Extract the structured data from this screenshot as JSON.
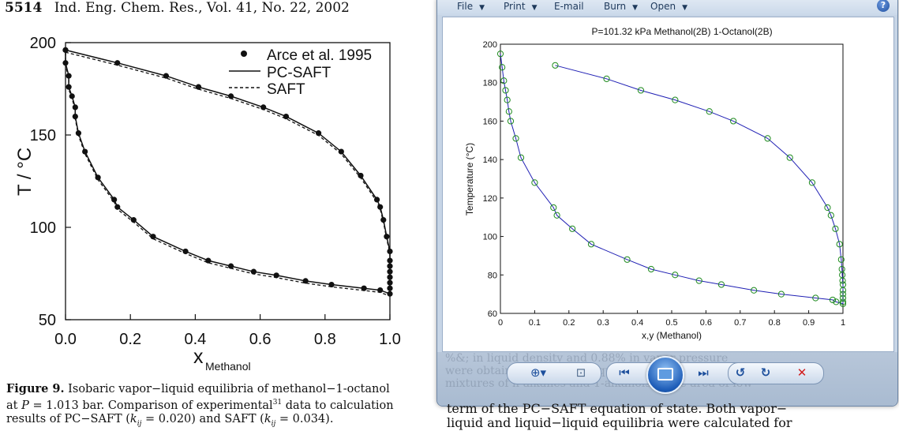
{
  "paper": {
    "page_number": "5514",
    "journal_line": "Ind. Eng. Chem. Res., Vol. 41, No. 22, 2002",
    "figure": {
      "y_axis_label": "T / °C",
      "x_axis_label_main": "x",
      "x_axis_label_sub": "Methanol",
      "legend": [
        "Arce et al. 1995",
        "PC-SAFT",
        "SAFT"
      ],
      "x_ticks": [
        "0.0",
        "0.2",
        "0.4",
        "0.6",
        "0.8",
        "1.0"
      ],
      "y_ticks": [
        "50",
        "100",
        "150",
        "200"
      ]
    },
    "caption": {
      "label": "Figure 9.",
      "line1": "Isobaric vapor−liquid equilibria of methanol−1-octanol",
      "line2_pre": "at ",
      "line2_p": "P",
      "line2_mid": " = 1.013 bar. Comparison of experimental",
      "line2_sup": "31",
      "line2_post": " data to calculation",
      "line3_pre": "results of PC−SAFT (",
      "line3_k1": "k",
      "line3_k1sub": "ij",
      "line3_mid": " = 0.020) and SAFT (",
      "line3_k2": "k",
      "line3_k2sub": "ij",
      "line3_post": " = 0.034)."
    }
  },
  "viewer": {
    "menu": [
      {
        "label": "File"
      },
      {
        "label": "Print"
      },
      {
        "label": "E-mail"
      },
      {
        "label": "Burn"
      },
      {
        "label": "Open"
      }
    ],
    "help_label": "?",
    "ghost_text": [
      "%&; in liquid density and 0.88% in vapor pressure",
      "were obtained. For phase equilibrium calculations of binary",
      "mixtures of n-alkanes and 1-alkanols in the area of low"
    ],
    "toolbar": {
      "zoom": "⊕▾",
      "fit": "⊡",
      "prev": "⏮",
      "next": "⏭",
      "rotate_ccw": "↺",
      "rotate_cw": "↻",
      "delete": "✕"
    },
    "colors": {
      "curve": "#1f1fb4",
      "markers": "#1e8a1e",
      "delete": "#d11d1d"
    }
  },
  "below_text": {
    "line1": "term of the PC−SAFT equation of state. Both vapor−",
    "line2": "liquid and liquid−liquid equilibria were calculated for"
  },
  "chart_data": [
    {
      "type": "scatter",
      "title": "",
      "xlabel": "x_Methanol",
      "ylabel": "T / °C",
      "xlim": [
        0.0,
        1.0
      ],
      "ylim": [
        50,
        200
      ],
      "legend_position": "top-right",
      "series": [
        {
          "name": "Arce et al. 1995",
          "kind": "points",
          "points": [
            [
              0.0,
              196
            ],
            [
              0.0,
              189
            ],
            [
              0.01,
              182
            ],
            [
              0.01,
              176
            ],
            [
              0.02,
              171
            ],
            [
              0.03,
              165
            ],
            [
              0.03,
              160
            ],
            [
              0.04,
              151
            ],
            [
              0.06,
              141
            ],
            [
              0.1,
              127
            ],
            [
              0.15,
              115
            ],
            [
              0.16,
              111
            ],
            [
              0.21,
              104
            ],
            [
              0.27,
              95
            ],
            [
              0.37,
              87
            ],
            [
              0.44,
              82
            ],
            [
              0.51,
              79
            ],
            [
              0.58,
              76
            ],
            [
              0.65,
              74
            ],
            [
              0.74,
              71
            ],
            [
              0.82,
              69
            ],
            [
              0.92,
              67
            ],
            [
              0.97,
              66
            ],
            [
              0.0,
              196
            ],
            [
              0.16,
              189
            ],
            [
              0.31,
              182
            ],
            [
              0.41,
              176
            ],
            [
              0.51,
              171
            ],
            [
              0.61,
              165
            ],
            [
              0.68,
              160
            ],
            [
              0.78,
              151
            ],
            [
              0.85,
              141
            ],
            [
              0.91,
              128
            ],
            [
              0.96,
              115
            ],
            [
              0.97,
              111
            ],
            [
              0.98,
              104
            ],
            [
              0.99,
              95
            ],
            [
              1.0,
              87
            ],
            [
              1.0,
              82
            ],
            [
              1.0,
              79
            ],
            [
              1.0,
              76
            ],
            [
              1.0,
              73
            ],
            [
              1.0,
              70
            ],
            [
              1.0,
              67
            ],
            [
              1.0,
              64
            ]
          ]
        },
        {
          "name": "PC-SAFT",
          "kind": "curve"
        },
        {
          "name": "SAFT",
          "kind": "curve-dashed"
        }
      ]
    },
    {
      "type": "scatter",
      "title": "P=101.32 kPa  Methanol(2B) 1-Octanol(2B)",
      "xlabel": "x,y (Methanol)",
      "ylabel": "Temperature (°C)",
      "xlim": [
        0,
        1
      ],
      "ylim": [
        60,
        200
      ],
      "x_ticks": [
        "0",
        "0.1",
        "0.2",
        "0.3",
        "0.4",
        "0.5",
        "0.6",
        "0.7",
        "0.8",
        "0.9",
        "1"
      ],
      "y_ticks": [
        "60",
        "80",
        "100",
        "120",
        "140",
        "160",
        "180",
        "200"
      ],
      "series": [
        {
          "kind": "points",
          "points": [
            [
              0.0,
              195
            ],
            [
              0.005,
              188
            ],
            [
              0.01,
              181
            ],
            [
              0.015,
              176
            ],
            [
              0.02,
              171
            ],
            [
              0.025,
              165
            ],
            [
              0.03,
              160
            ],
            [
              0.045,
              151
            ],
            [
              0.06,
              141
            ],
            [
              0.1,
              128
            ],
            [
              0.155,
              115
            ],
            [
              0.165,
              111
            ],
            [
              0.21,
              104
            ],
            [
              0.265,
              96
            ],
            [
              0.37,
              88
            ],
            [
              0.44,
              83
            ],
            [
              0.51,
              80
            ],
            [
              0.58,
              77
            ],
            [
              0.645,
              75
            ],
            [
              0.74,
              72
            ],
            [
              0.82,
              70
            ],
            [
              0.92,
              68
            ],
            [
              0.97,
              67
            ],
            [
              0.98,
              66
            ],
            [
              0.16,
              189
            ],
            [
              0.31,
              182
            ],
            [
              0.41,
              176
            ],
            [
              0.51,
              171
            ],
            [
              0.61,
              165
            ],
            [
              0.68,
              160
            ],
            [
              0.78,
              151
            ],
            [
              0.845,
              141
            ],
            [
              0.91,
              128
            ],
            [
              0.955,
              115
            ],
            [
              0.965,
              111
            ],
            [
              0.978,
              104
            ],
            [
              0.99,
              96
            ],
            [
              0.995,
              88
            ],
            [
              0.997,
              83
            ],
            [
              0.998,
              80
            ],
            [
              0.999,
              77
            ],
            [
              1.0,
              75
            ],
            [
              1.0,
              72
            ],
            [
              1.0,
              70
            ],
            [
              1.0,
              68
            ],
            [
              1.0,
              66
            ],
            [
              1.0,
              65
            ]
          ]
        },
        {
          "kind": "curve"
        }
      ]
    }
  ]
}
